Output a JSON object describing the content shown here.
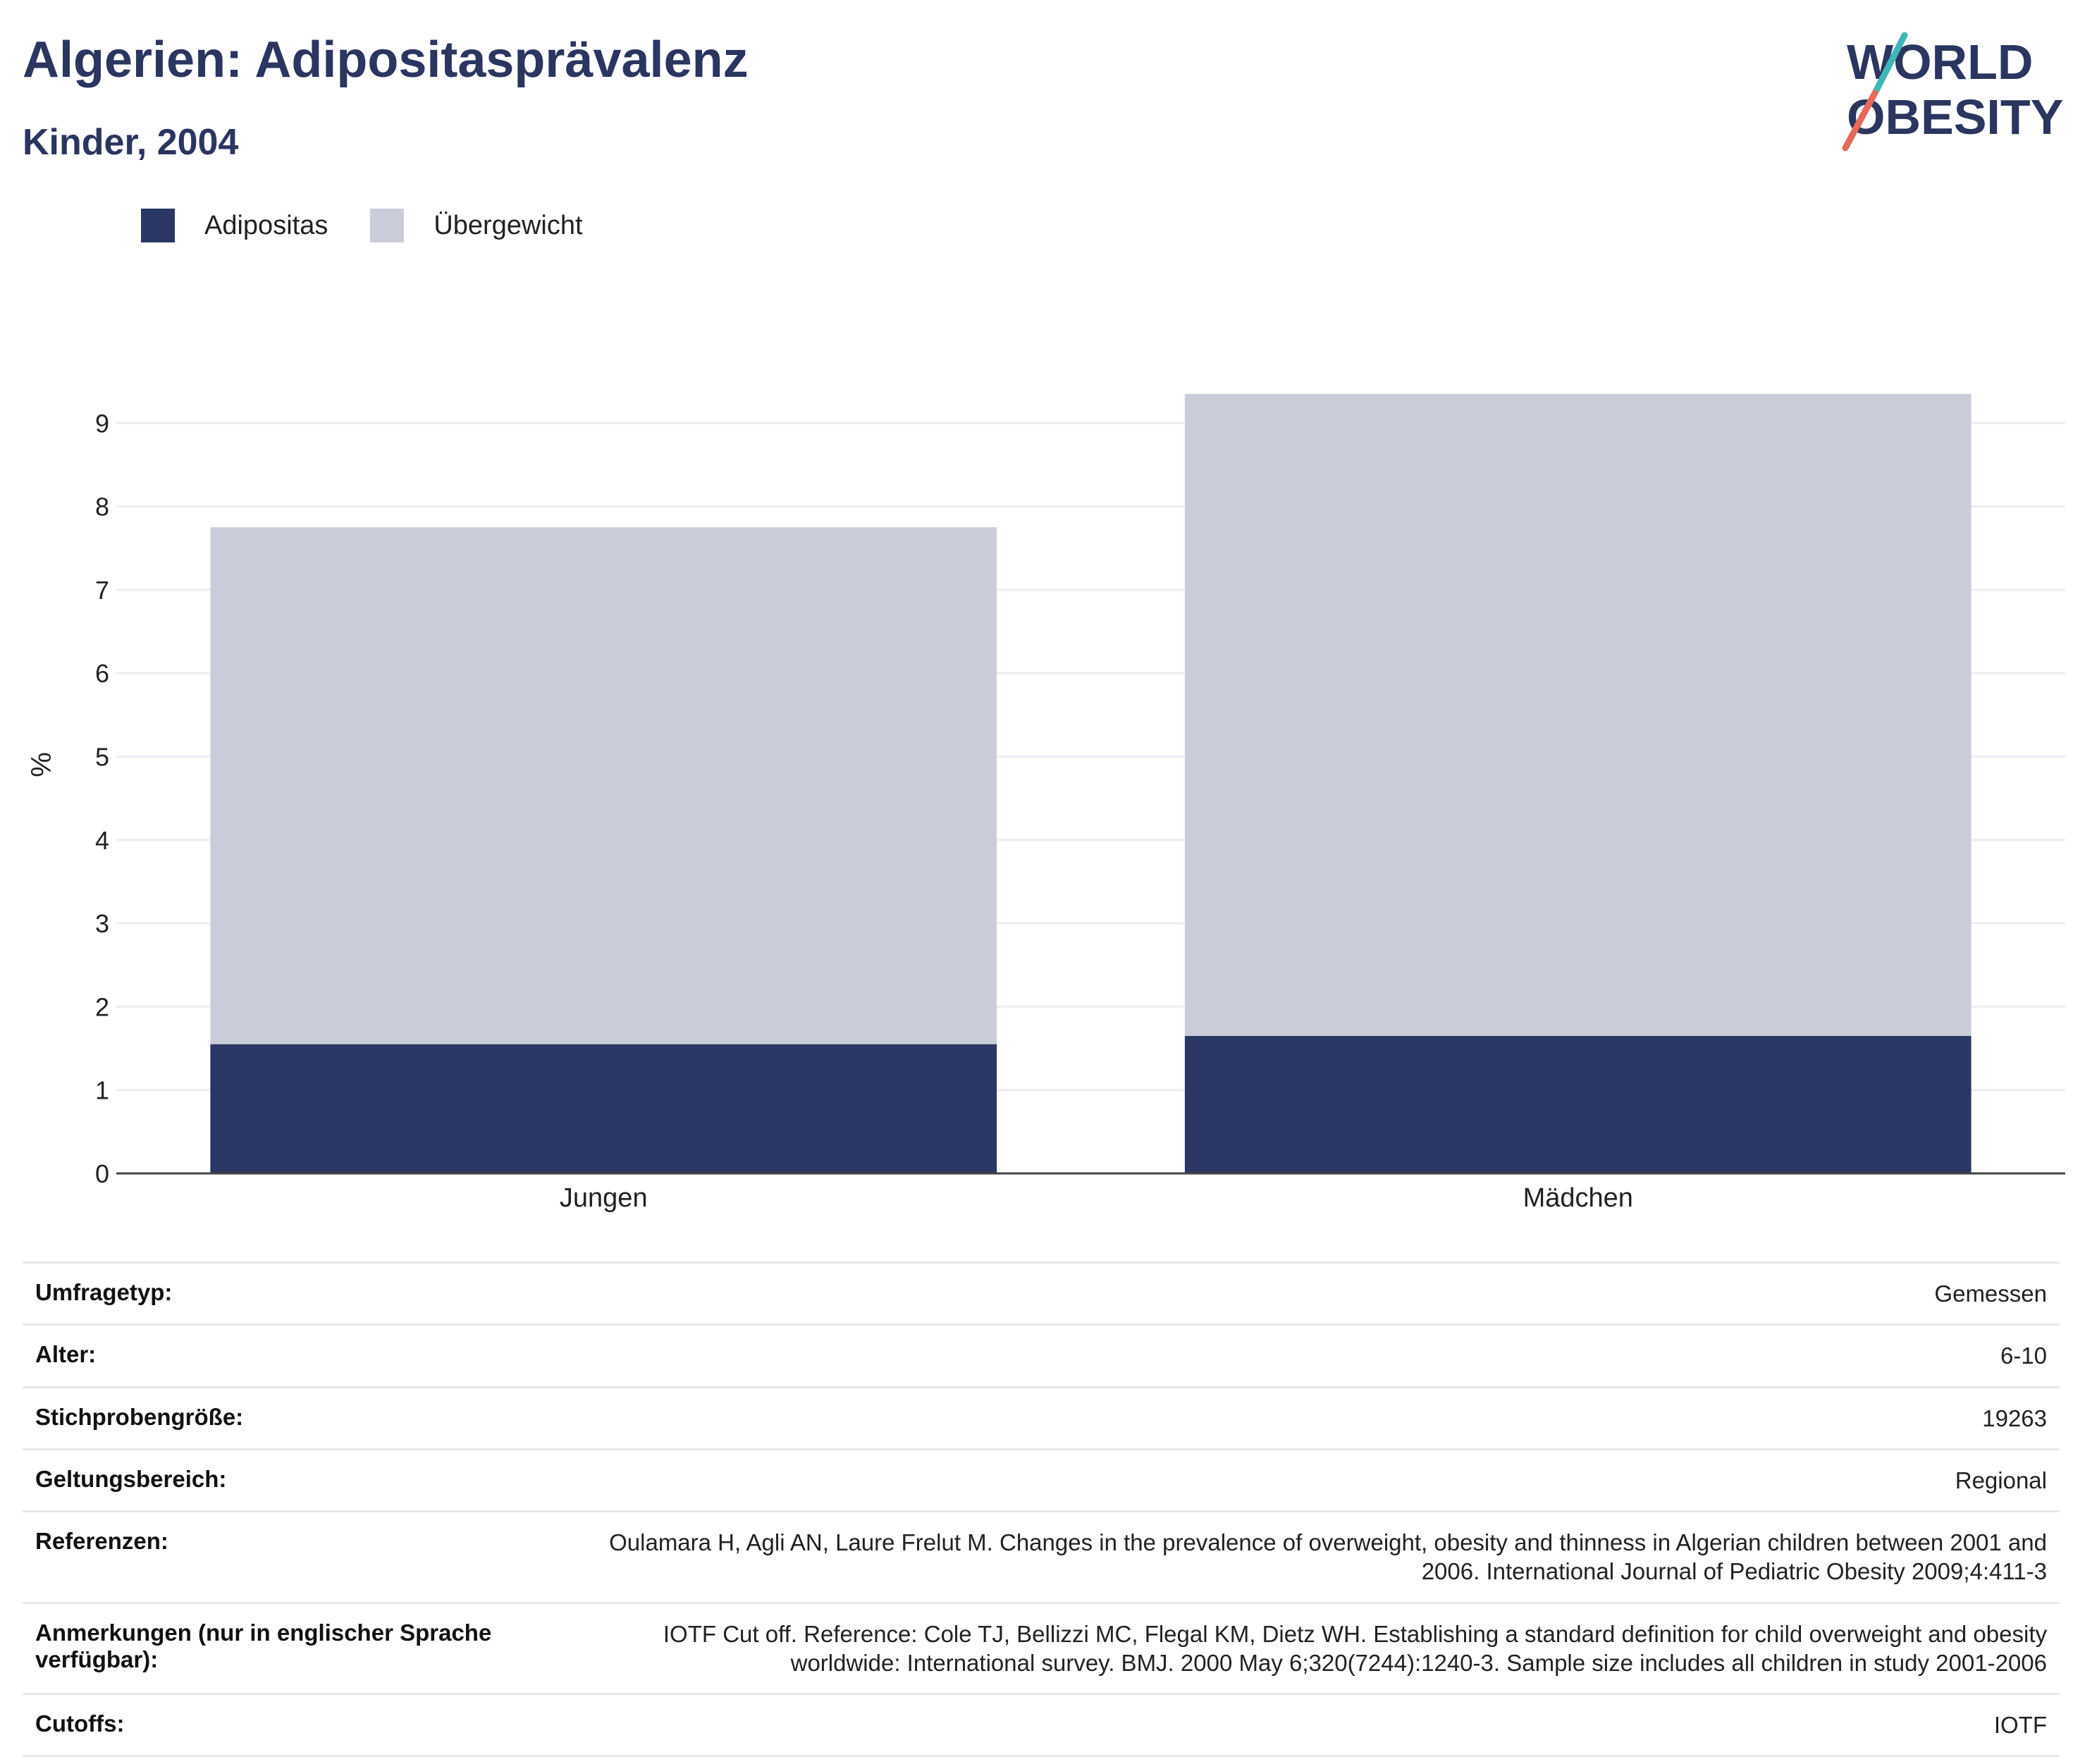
{
  "header": {
    "title": "Algerien: Adipositasprävalenz",
    "subtitle": "Kinder, 2004"
  },
  "logo": {
    "line1": "WORLD",
    "line2": "OBESITY"
  },
  "colors": {
    "obesity": "#2a3663",
    "overweight": "#cacdd9",
    "accent_teal": "#3fb6b8",
    "accent_coral": "#e8695a"
  },
  "chart_data": {
    "type": "bar",
    "stacked": true,
    "categories": [
      "Jungen",
      "Mädchen"
    ],
    "series": [
      {
        "name": "Adipositas",
        "values": [
          1.55,
          1.65
        ],
        "color": "#2a3663"
      },
      {
        "name": "Übergewicht",
        "values": [
          6.2,
          7.7
        ],
        "color": "#cacdd9"
      }
    ],
    "ylabel": "%",
    "xlabel": "",
    "ylim": [
      0,
      9.5
    ],
    "yticks": [
      0,
      1,
      2,
      3,
      4,
      5,
      6,
      7,
      8,
      9
    ],
    "grid": true,
    "legend_position": "top-left"
  },
  "meta": [
    {
      "key": "Umfragetyp:",
      "value": "Gemessen"
    },
    {
      "key": "Alter:",
      "value": "6-10"
    },
    {
      "key": "Stichprobengröße:",
      "value": "19263"
    },
    {
      "key": "Geltungsbereich:",
      "value": "Regional"
    },
    {
      "key": "Referenzen:",
      "value": "Oulamara H, Agli AN, Laure Frelut M. Changes in the prevalence of overweight, obesity and thinness in Algerian children between 2001 and 2006. International Journal of Pediatric Obesity 2009;4:411-3"
    },
    {
      "key": "Anmerkungen (nur in englischer Sprache verfügbar):",
      "value": "IOTF Cut off. Reference: Cole TJ, Bellizzi MC, Flegal KM, Dietz WH. Establishing a standard definition for child overweight and obesity worldwide: International survey. BMJ. 2000 May 6;320(7244):1240-3. Sample size includes all children in study 2001-2006"
    },
    {
      "key": "Cutoffs:",
      "value": "IOTF"
    }
  ]
}
